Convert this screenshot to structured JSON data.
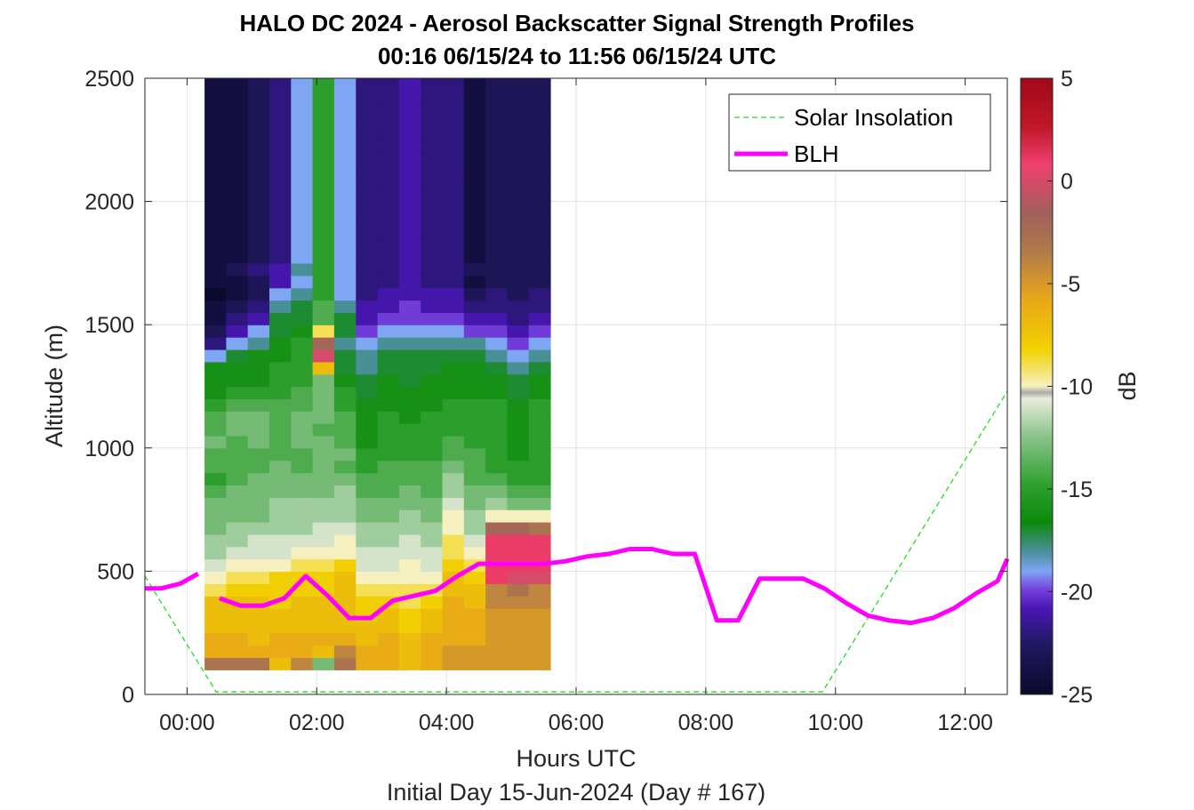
{
  "chart_data": {
    "type": "heatmap",
    "title": "HALO DC 2024 - Aerosol Backscatter Signal Strength Profiles",
    "subtitle": "00:16 06/15/24 to 11:56 06/15/24  UTC",
    "xlabel": "Hours UTC",
    "xlabel2": "Initial Day 15-Jun-2024 (Day # 167)",
    "ylabel": "Altitude (m)",
    "colorbar_label": "dB",
    "xlim": [
      -0.65,
      12.65
    ],
    "ylim": [
      0,
      2500
    ],
    "x_ticks": [
      0,
      2,
      4,
      6,
      8,
      10,
      12
    ],
    "x_tick_labels": [
      "00:00",
      "02:00",
      "04:00",
      "06:00",
      "08:00",
      "10:00",
      "12:00"
    ],
    "y_ticks": [
      0,
      500,
      1000,
      1500,
      2000,
      2500
    ],
    "y_tick_labels": [
      "0",
      "500",
      "1000",
      "1500",
      "2000",
      "2500"
    ],
    "clim": [
      -25,
      5
    ],
    "colorbar_ticks": [
      5,
      0,
      -5,
      -10,
      -15,
      -20,
      -25
    ],
    "colorbar_tick_labels": [
      "5",
      "0",
      "-5",
      "-10",
      "-15",
      "-20",
      "-25"
    ],
    "grid": true,
    "legend_position": "top-right",
    "heatmap": {
      "x_start": 0.27,
      "x_step": 0.3333,
      "y_start": 100,
      "y_step": 50,
      "columns_dB": [
        [
          -3,
          -6,
          -6,
          -7,
          -7,
          -7,
          -9,
          -10,
          -11,
          -12,
          -12,
          -13,
          -13,
          -13,
          -14,
          -15,
          -14,
          -14,
          -13,
          -14,
          -14,
          -15,
          -16,
          -16,
          -16,
          -19,
          -22,
          -23,
          -24,
          -24,
          -25,
          -24,
          -24,
          -24,
          -24,
          -24,
          -24,
          -24,
          -24,
          -24,
          -24,
          -24,
          -24,
          -24,
          -24,
          -24,
          -24,
          -24
        ],
        [
          -3,
          -6,
          -6,
          -7,
          -7,
          -7,
          -8,
          -9,
          -10,
          -11,
          -12,
          -12,
          -13,
          -13,
          -13,
          -14,
          -14,
          -14,
          -14,
          -13,
          -13,
          -14,
          -15,
          -16,
          -16,
          -17,
          -19,
          -21,
          -22,
          -23,
          -24,
          -24,
          -23,
          -24,
          -24,
          -24,
          -24,
          -24,
          -24,
          -24,
          -24,
          -24,
          -24,
          -24,
          -24,
          -24,
          -24,
          -24
        ],
        [
          -3,
          -6,
          -7,
          -7,
          -7,
          -7,
          -8,
          -9,
          -10,
          -11,
          -11,
          -12,
          -13,
          -13,
          -13,
          -13,
          -14,
          -14,
          -13,
          -13,
          -13,
          -14,
          -15,
          -16,
          -16,
          -16,
          -18,
          -19,
          -21,
          -22,
          -23,
          -23,
          -22,
          -23,
          -23,
          -23,
          -23,
          -23,
          -23,
          -23,
          -23,
          -23,
          -23,
          -23,
          -23,
          -23,
          -23,
          -23
        ],
        [
          -7,
          -6,
          -6,
          -7,
          -7,
          -8,
          -8,
          -8,
          -10,
          -11,
          -11,
          -12,
          -12,
          -12,
          -13,
          -13,
          -13,
          -14,
          -14,
          -14,
          -14,
          -14,
          -15,
          -15,
          -15,
          -16,
          -16,
          -17,
          -17,
          -18,
          -19,
          -21,
          -21,
          -22,
          -22,
          -22,
          -22,
          -22,
          -22,
          -22,
          -22,
          -22,
          -22,
          -22,
          -22,
          -22,
          -22,
          -22
        ],
        [
          -4,
          -6,
          -6,
          -7,
          -7,
          -7,
          -8,
          -8,
          -9,
          -10,
          -11,
          -12,
          -12,
          -12,
          -13,
          -13,
          -14,
          -14,
          -13,
          -13,
          -13,
          -14,
          -14,
          -15,
          -15,
          -15,
          -15,
          -16,
          -17,
          -17,
          -18,
          -19,
          -18,
          -19,
          -19,
          -19,
          -19,
          -19,
          -19,
          -19,
          -19,
          -19,
          -19,
          -19,
          -19,
          -19,
          -19,
          -19
        ],
        [
          -13,
          -7,
          -6,
          -7,
          -7,
          -7,
          -8,
          -8,
          -9,
          -10,
          -11,
          -11,
          -12,
          -12,
          -13,
          -13,
          -13,
          -13,
          -13,
          -14,
          -13,
          -13,
          -13,
          -13,
          -7,
          0,
          -2,
          -9,
          -14,
          -14,
          -15,
          -15,
          -15,
          -15,
          -15,
          -15,
          -15,
          -15,
          -15,
          -15,
          -15,
          -15,
          -15,
          -15,
          -15,
          -15,
          -15,
          -15
        ],
        [
          -3,
          -4,
          -6,
          -7,
          -7,
          -7,
          -7,
          -7,
          -8,
          -10,
          -10,
          -11,
          -12,
          -12,
          -12,
          -13,
          -14,
          -13,
          -14,
          -14,
          -14,
          -15,
          -15,
          -16,
          -17,
          -17,
          -18,
          -17,
          -17,
          -18,
          -19,
          -19,
          -19,
          -19,
          -19,
          -19,
          -19,
          -19,
          -19,
          -19,
          -19,
          -19,
          -19,
          -19,
          -19,
          -19,
          -19,
          -19
        ],
        [
          -6,
          -6,
          -7,
          -7,
          -8,
          -8,
          -9,
          -10,
          -11,
          -11,
          -12,
          -12,
          -13,
          -13,
          -14,
          -14,
          -15,
          -15,
          -16,
          -16,
          -16,
          -16,
          -17,
          -17,
          -18,
          -18,
          -19,
          -20,
          -21,
          -21,
          -22,
          -22,
          -22,
          -22,
          -22,
          -22,
          -22,
          -22,
          -22,
          -22,
          -22,
          -22,
          -22,
          -22,
          -22,
          -22,
          -22,
          -22
        ],
        [
          -6,
          -6,
          -6,
          -7,
          -7,
          -8,
          -9,
          -10,
          -11,
          -11,
          -12,
          -12,
          -13,
          -13,
          -14,
          -14,
          -14,
          -15,
          -15,
          -15,
          -15,
          -16,
          -16,
          -16,
          -17,
          -17,
          -18,
          -19,
          -20,
          -21,
          -21,
          -22,
          -22,
          -22,
          -22,
          -22,
          -22,
          -22,
          -22,
          -22,
          -22,
          -22,
          -22,
          -22,
          -22,
          -22,
          -22,
          -22
        ],
        [
          -7,
          -7,
          -7,
          -8,
          -8,
          -9,
          -9,
          -10,
          -10,
          -11,
          -11,
          -12,
          -12,
          -13,
          -13,
          -14,
          -14,
          -15,
          -15,
          -15,
          -16,
          -16,
          -16,
          -17,
          -17,
          -17,
          -18,
          -19,
          -20,
          -20,
          -21,
          -21,
          -21,
          -21,
          -21,
          -21,
          -21,
          -21,
          -21,
          -21,
          -21,
          -21,
          -21,
          -21,
          -21,
          -21,
          -21,
          -21
        ],
        [
          -6,
          -6,
          -6,
          -7,
          -7,
          -8,
          -9,
          -10,
          -11,
          -11,
          -12,
          -12,
          -13,
          -13,
          -14,
          -14,
          -14,
          -15,
          -15,
          -15,
          -15,
          -16,
          -16,
          -16,
          -17,
          -17,
          -18,
          -19,
          -20,
          -21,
          -21,
          -22,
          -22,
          -22,
          -22,
          -22,
          -22,
          -22,
          -22,
          -22,
          -22,
          -22,
          -22,
          -22,
          -22,
          -22,
          -22,
          -22
        ],
        [
          -5,
          -5,
          -6,
          -6,
          -6,
          -6,
          -7,
          -7,
          -8,
          -9,
          -9,
          -10,
          -10,
          -11,
          -12,
          -12,
          -13,
          -14,
          -14,
          -15,
          -15,
          -15,
          -16,
          -16,
          -16,
          -17,
          -18,
          -19,
          -20,
          -21,
          -21,
          -22,
          -22,
          -22,
          -22,
          -22,
          -22,
          -22,
          -22,
          -22,
          -22,
          -22,
          -22,
          -22,
          -22,
          -22,
          -22,
          -22
        ],
        [
          -5,
          -5,
          -6,
          -6,
          -6,
          -7,
          -7,
          -8,
          -9,
          -10,
          -11,
          -12,
          -12,
          -13,
          -13,
          -14,
          -14,
          -14,
          -15,
          -15,
          -15,
          -15,
          -16,
          -16,
          -16,
          -17,
          -18,
          -20,
          -21,
          -22,
          -23,
          -24,
          -23,
          -24,
          -24,
          -24,
          -24,
          -24,
          -24,
          -24,
          -24,
          -24,
          -24,
          -24,
          -24,
          -24,
          -24,
          -24
        ],
        [
          -5,
          -5,
          -5,
          -5,
          -5,
          -4,
          -4,
          1,
          1,
          1,
          1,
          -2,
          -10,
          -12,
          -13,
          -14,
          -15,
          -15,
          -15,
          -15,
          -15,
          -15,
          -16,
          -16,
          -17,
          -18,
          -19,
          -20,
          -21,
          -22,
          -22,
          -23,
          -23,
          -23,
          -23,
          -23,
          -23,
          -23,
          -23,
          -23,
          -23,
          -23,
          -23,
          -23,
          -23,
          -23,
          -23,
          -23
        ],
        [
          -5,
          -5,
          -5,
          -5,
          -5,
          -4,
          -3,
          0,
          1,
          1,
          1,
          -2,
          -10,
          -13,
          -14,
          -15,
          -15,
          -16,
          -16,
          -16,
          -16,
          -16,
          -17,
          -17,
          -18,
          -19,
          -20,
          -21,
          -22,
          -22,
          -23,
          -23,
          -23,
          -23,
          -23,
          -23,
          -23,
          -23,
          -23,
          -23,
          -23,
          -23,
          -23,
          -23,
          -23,
          -23,
          -23,
          -23
        ],
        [
          -5,
          -5,
          -5,
          -5,
          -5,
          -4,
          -4,
          0,
          1,
          1,
          1,
          -3,
          -10,
          -13,
          -14,
          -15,
          -15,
          -15,
          -15,
          -15,
          -15,
          -15,
          -16,
          -16,
          -17,
          -18,
          -19,
          -20,
          -21,
          -22,
          -22,
          -23,
          -23,
          -23,
          -23,
          -23,
          -23,
          -23,
          -23,
          -23,
          -23,
          -23,
          -23,
          -23,
          -23,
          -23,
          -23,
          -23
        ]
      ]
    },
    "series": [
      {
        "name": "Solar Insolation",
        "style": "dashed",
        "color": "#22dd22",
        "x": [
          -0.65,
          0.45,
          9.8,
          12.65
        ],
        "y": [
          480,
          10,
          10,
          1230
        ]
      },
      {
        "name": "BLH",
        "style": "solid",
        "color": "#ff00ff",
        "segments": [
          {
            "x": [
              -0.65,
              -0.4,
              -0.1,
              0.17
            ],
            "y": [
              430,
              430,
              450,
              490
            ]
          },
          {
            "x": [
              0.5,
              0.83,
              1.17,
              1.5,
              1.83,
              2.17,
              2.5,
              2.83,
              3.17,
              3.5,
              3.83,
              4.17,
              4.5,
              4.83,
              5.17,
              5.5,
              5.83,
              6.17,
              6.5,
              6.83,
              7.17,
              7.5,
              7.83,
              8.17,
              8.5,
              8.83,
              9.17,
              9.5,
              9.83,
              10.17,
              10.5,
              10.83,
              11.17,
              11.5,
              11.83,
              12.17,
              12.5,
              12.65
            ],
            "y": [
              390,
              360,
              360,
              390,
              480,
              400,
              310,
              310,
              380,
              400,
              420,
              480,
              530,
              530,
              530,
              530,
              540,
              560,
              570,
              590,
              590,
              570,
              570,
              300,
              300,
              470,
              470,
              470,
              430,
              370,
              320,
              300,
              290,
              310,
              350,
              410,
              460,
              550
            ]
          }
        ]
      }
    ],
    "legend": [
      "Solar Insolation",
      "BLH"
    ]
  }
}
